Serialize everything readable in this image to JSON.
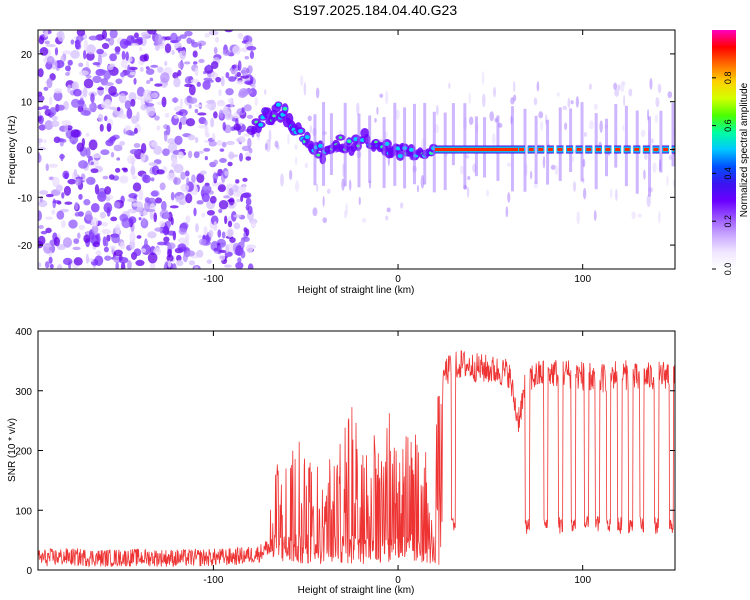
{
  "title": "S197.2025.184.04.40.G23",
  "colorbar": {
    "label": "Normalized spectral amplitude",
    "ticks": [
      "0.0",
      "0.2",
      "0.4",
      "0.6",
      "0.8"
    ],
    "tick_values": [
      0.0,
      0.2,
      0.4,
      0.6,
      0.8
    ],
    "range": [
      0.0,
      1.0
    ],
    "colormap": [
      "#ffffff",
      "#f0e6ff",
      "#c9a6ff",
      "#9a55ff",
      "#6a00ff",
      "#3b14f0",
      "#0050ff",
      "#00c8ff",
      "#00ffa0",
      "#4dff00",
      "#d4ff00",
      "#ffd000",
      "#ff6a00",
      "#ff0000",
      "#ff00c0"
    ]
  },
  "chart_data": [
    {
      "type": "heatmap",
      "xlabel": "Height of straight line (km)",
      "ylabel": "Frequency (Hz)",
      "xlim": [
        -195,
        150
      ],
      "ylim": [
        -25,
        25
      ],
      "x_ticks": [
        -100,
        0,
        100
      ],
      "x_tick_labels": [
        "-100",
        "0",
        "100"
      ],
      "y_ticks": [
        -20,
        -10,
        0,
        10,
        20
      ],
      "y_tick_labels": [
        "-20",
        "-10",
        "0",
        "10",
        "20"
      ],
      "noise_region_x": [
        -195,
        -78
      ],
      "signal_track": {
        "x": [
          -78,
          -72,
          -65,
          -60,
          -55,
          -50,
          -45,
          -40,
          -35,
          -30,
          -25,
          -20,
          -15,
          -10,
          -5,
          0,
          10,
          20,
          40,
          60,
          80,
          100,
          120,
          150
        ],
        "y": [
          5,
          7,
          8,
          7,
          4,
          2,
          0,
          -1,
          1,
          1,
          1,
          2,
          2,
          1,
          0,
          0,
          0,
          0,
          0,
          0,
          0,
          0,
          0,
          0
        ]
      },
      "continuous_segment_x": [
        20,
        65
      ],
      "dashed_segment_x": [
        65,
        150
      ]
    },
    {
      "type": "line",
      "xlabel": "Height of straight line (km)",
      "ylabel": "SNR (10 * v/v)",
      "xlim": [
        -195,
        150
      ],
      "ylim": [
        0,
        400
      ],
      "x_ticks": [
        -100,
        0,
        100
      ],
      "x_tick_labels": [
        "-100",
        "0",
        "100"
      ],
      "y_ticks": [
        0,
        100,
        200,
        300,
        400
      ],
      "y_tick_labels": [
        "0",
        "100",
        "200",
        "300",
        "400"
      ],
      "series": [
        {
          "color": "#ee3333",
          "x": [
            -195,
            -180,
            -160,
            -140,
            -120,
            -100,
            -90,
            -80,
            -75,
            -70,
            -65,
            -60,
            -55,
            -50,
            -45,
            -40,
            -35,
            -30,
            -25,
            -20,
            -15,
            -10,
            -5,
            0,
            5,
            10,
            15,
            20,
            22,
            25,
            30,
            35,
            40,
            50,
            60,
            65,
            70,
            80,
            90,
            100,
            110,
            120,
            130,
            140,
            150
          ],
          "y": [
            20,
            22,
            20,
            21,
            20,
            21,
            22,
            25,
            28,
            40,
            90,
            110,
            100,
            95,
            85,
            80,
            95,
            110,
            130,
            120,
            100,
            110,
            120,
            110,
            115,
            105,
            95,
            20,
            180,
            330,
            340,
            345,
            340,
            335,
            330,
            250,
            320,
            330,
            330,
            325,
            320,
            330,
            320,
            325,
            330
          ]
        }
      ],
      "dropouts": [
        {
          "x": 30,
          "y": 65
        },
        {
          "x": 70,
          "y": 80
        },
        {
          "x": 80,
          "y": 70
        },
        {
          "x": 88,
          "y": 75
        },
        {
          "x": 95,
          "y": 70
        },
        {
          "x": 102,
          "y": 75
        },
        {
          "x": 108,
          "y": 70
        },
        {
          "x": 114,
          "y": 65
        },
        {
          "x": 120,
          "y": 70
        },
        {
          "x": 126,
          "y": 75
        },
        {
          "x": 132,
          "y": 70
        },
        {
          "x": 140,
          "y": 65
        },
        {
          "x": 148,
          "y": 75
        }
      ]
    }
  ]
}
